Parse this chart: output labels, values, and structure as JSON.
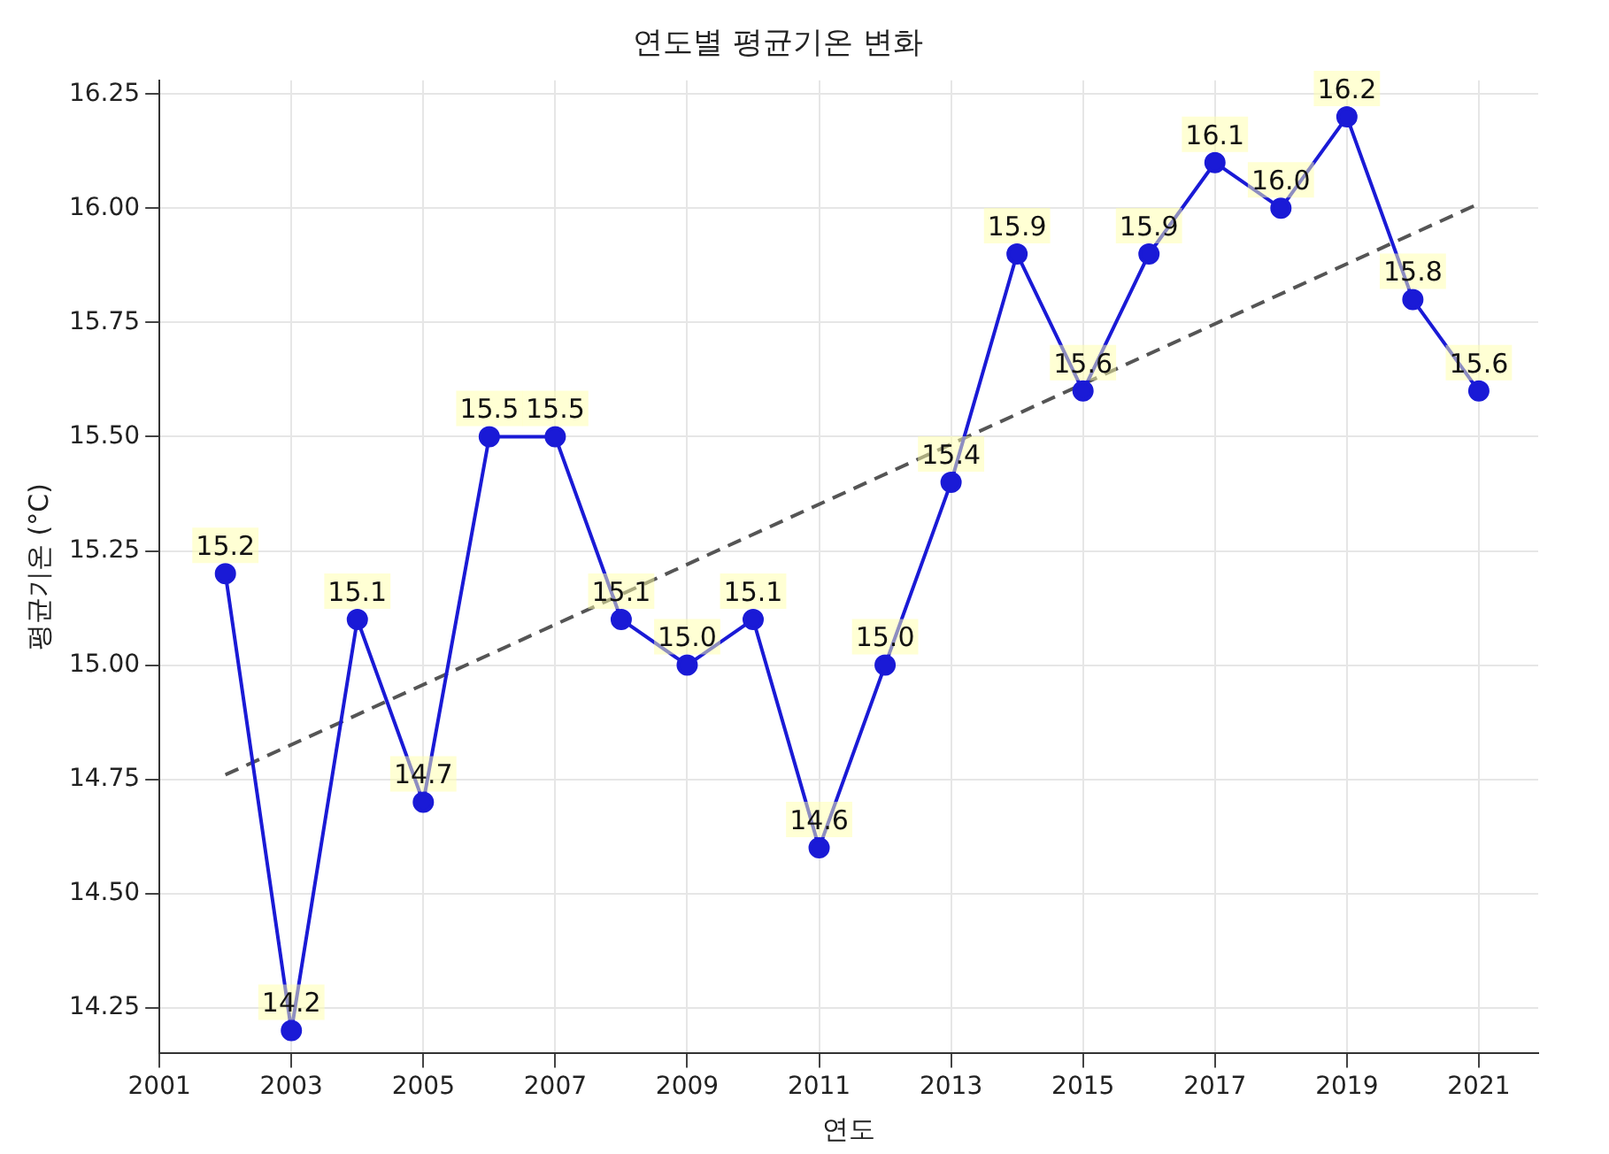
{
  "chart_data": {
    "type": "line",
    "title": "연도별 평균기온 변화",
    "xlabel": "연도",
    "ylabel": "평균기온 (°C)",
    "x": [
      2002,
      2003,
      2004,
      2005,
      2006,
      2007,
      2008,
      2009,
      2010,
      2011,
      2012,
      2013,
      2014,
      2015,
      2016,
      2017,
      2018,
      2019,
      2020,
      2021
    ],
    "series": [
      {
        "color": "#1a1ad6",
        "values": [
          15.2,
          14.2,
          15.1,
          14.7,
          15.5,
          15.5,
          15.1,
          15.0,
          15.1,
          14.6,
          15.0,
          15.4,
          15.9,
          15.6,
          15.9,
          16.1,
          16.0,
          16.2,
          15.8,
          15.6
        ],
        "marker": "circle",
        "value_labels": [
          "15.2",
          "14.2",
          "15.1",
          "14.7",
          "15.5",
          "15.5",
          "15.1",
          "15.0",
          "15.1",
          "14.6",
          "15.0",
          "15.4",
          "15.9",
          "15.6",
          "15.9",
          "16.1",
          "16.0",
          "16.2",
          "15.8",
          "15.6"
        ]
      },
      {
        "type": "line",
        "color": "#555555",
        "x": [
          2002,
          2021
        ],
        "values": [
          14.76,
          16.01
        ],
        "line_style": "dashed",
        "marker": "none"
      }
    ],
    "xlim": [
      2001,
      2021.9
    ],
    "xticks": [
      2001,
      2003,
      2005,
      2007,
      2009,
      2011,
      2013,
      2015,
      2017,
      2019,
      2021
    ],
    "ylim": [
      14.15,
      16.28
    ],
    "yticks": [
      {
        "value": 14.25,
        "label": "14.25"
      },
      {
        "value": 14.5,
        "label": "14.50"
      },
      {
        "value": 14.75,
        "label": "14.75"
      },
      {
        "value": 15,
        "label": "15.00"
      },
      {
        "value": 15.25,
        "label": "15.25"
      },
      {
        "value": 15.5,
        "label": "15.50"
      },
      {
        "value": 15.75,
        "label": "15.75"
      },
      {
        "value": 16,
        "label": "16.00"
      },
      {
        "value": 16.25,
        "label": "16.25"
      }
    ],
    "grid": true,
    "legend": false
  }
}
